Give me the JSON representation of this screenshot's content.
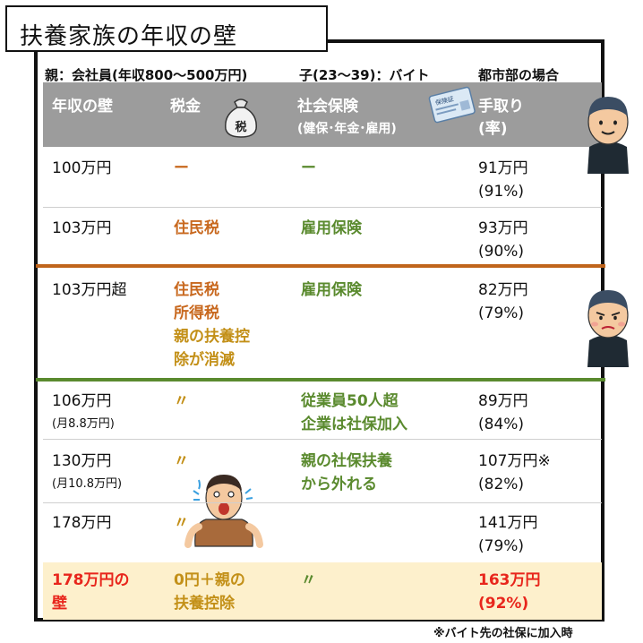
{
  "title": "扶養家族の年収の壁",
  "subheader": {
    "parent": "親：会社員(年収800～500万円)",
    "child": "子(23～39)：バイト",
    "region": "都市部の場合"
  },
  "columns": {
    "wall": "年収の壁",
    "tax": "税金",
    "tax_bag_label": "税",
    "insurance_line1": "社会保険",
    "insurance_line2": "(健保･年金･雇用)",
    "card_label": "保険証",
    "takehome_line1": "手取り",
    "takehome_line2": "(率)"
  },
  "rows": [
    {
      "wall1": "100万円",
      "wall2": "",
      "tax": [
        "ー"
      ],
      "ins": [
        "ー"
      ],
      "take1": "91万円",
      "take2": "(91%)"
    },
    {
      "wall1": "103万円",
      "wall2": "",
      "tax": [
        "住民税"
      ],
      "ins": [
        "雇用保険"
      ],
      "take1": "93万円",
      "take2": "(90%)"
    },
    {
      "wall1": "103万円超",
      "wall2": "",
      "tax": [
        "住民税",
        "所得税",
        "親の扶養控",
        "除が消滅"
      ],
      "ins": [
        "雇用保険"
      ],
      "take1": "82万円",
      "take2": "(79%)"
    },
    {
      "wall1": "106万円",
      "wall2": "(月8.8万円)",
      "tax": [
        "〃"
      ],
      "ins": [
        "従業員50人超",
        "企業は社保加入"
      ],
      "take1": "89万円",
      "take2": "(84%)"
    },
    {
      "wall1": "130万円",
      "wall2": "(月10.8万円)",
      "tax": [
        "〃"
      ],
      "ins": [
        "親の社保扶養",
        "から外れる"
      ],
      "take1": "107万円※",
      "take2": "(82%)"
    },
    {
      "wall1": "178万円",
      "wall2": "",
      "tax": [
        "〃"
      ],
      "ins": [],
      "take1": "141万円",
      "take2": "(79%)"
    },
    {
      "wall1": "178万円の",
      "wall2": "壁",
      "tax": [
        "0円＋親の",
        "扶養控除"
      ],
      "ins": [
        "〃"
      ],
      "take1": "163万円",
      "take2": "(92%)"
    }
  ],
  "footnote": "※バイト先の社保に加入時",
  "colors": {
    "header_bg": "#9c9c9c",
    "tax_text": "#c8681e",
    "insurance_text": "#5a8a2e",
    "highlight_bg": "#fdf0cc",
    "highlight_red": "#e8261c",
    "highlight_gold": "#c39018"
  },
  "icons": [
    "money-bag-icon",
    "insurance-card-icon",
    "happy-man-icon",
    "worried-man-icon",
    "shocked-man-icon"
  ]
}
